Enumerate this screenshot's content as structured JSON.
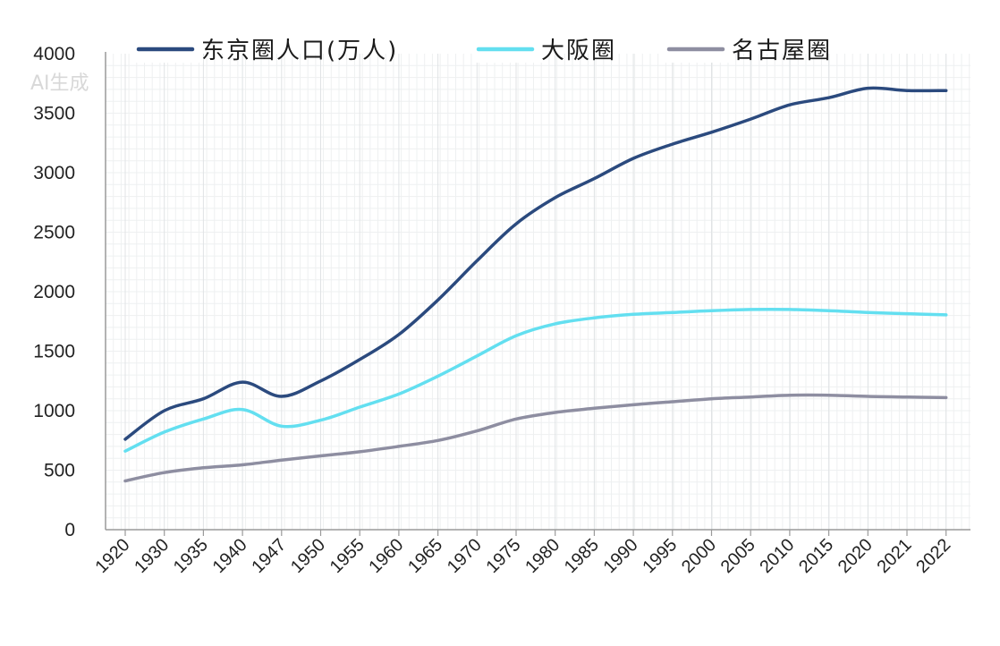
{
  "watermark": "AI生成",
  "chart_data": {
    "type": "line",
    "title": "",
    "xlabel": "",
    "ylabel": "",
    "ylim": [
      0,
      4000
    ],
    "yticks": [
      "0",
      "500",
      "1000",
      "1500",
      "2000",
      "2500",
      "3000",
      "3500",
      "4000"
    ],
    "grid": true,
    "legend_position": "top",
    "categories": [
      "1920",
      "1930",
      "1935",
      "1940",
      "1947",
      "1950",
      "1955",
      "1960",
      "1965",
      "1970",
      "1975",
      "1980",
      "1985",
      "1990",
      "1995",
      "2000",
      "2005",
      "2010",
      "2015",
      "2020",
      "2021",
      "2022"
    ],
    "series": [
      {
        "name": "东京圈人口(万人)",
        "color": "#2b4a7e",
        "values": [
          760,
          1000,
          1100,
          1240,
          1120,
          1250,
          1430,
          1640,
          1930,
          2260,
          2570,
          2790,
          2950,
          3120,
          3240,
          3340,
          3450,
          3570,
          3630,
          3710,
          3690,
          3690
        ]
      },
      {
        "name": "大阪圈",
        "color": "#63dff0",
        "values": [
          660,
          820,
          930,
          1010,
          870,
          920,
          1030,
          1140,
          1290,
          1460,
          1630,
          1730,
          1780,
          1810,
          1825,
          1840,
          1850,
          1850,
          1840,
          1825,
          1815,
          1805
        ]
      },
      {
        "name": "名古屋圈",
        "color": "#8e8ea1",
        "values": [
          410,
          480,
          520,
          545,
          585,
          620,
          655,
          700,
          750,
          830,
          930,
          985,
          1020,
          1050,
          1075,
          1100,
          1115,
          1130,
          1130,
          1120,
          1115,
          1110
        ]
      }
    ]
  }
}
